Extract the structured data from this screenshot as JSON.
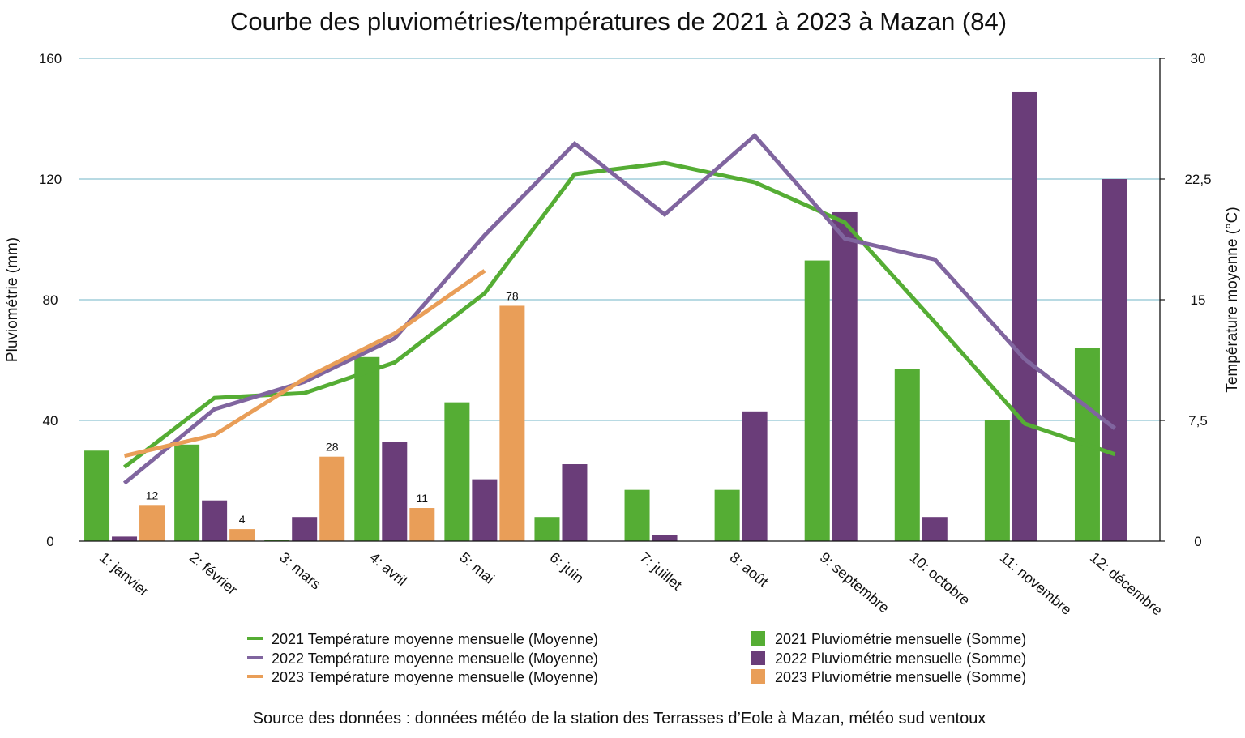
{
  "chart_data": {
    "type": "bar",
    "title": "Courbe des pluviométries/températures de 2021 à 2023 à Mazan (84)",
    "ylabel": "Pluviométrie (mm)",
    "y2label": "Température moyenne (°C)",
    "ylim": [
      0,
      160
    ],
    "y2lim": [
      0,
      30
    ],
    "yticks": [
      "0",
      "40",
      "80",
      "120",
      "160"
    ],
    "y2ticks": [
      "0",
      "7,5",
      "15",
      "22,5",
      "30"
    ],
    "grid": true,
    "legend_position": "bottom",
    "categories": [
      "1: janvier",
      "2: février",
      "3: mars",
      "4: avril",
      "5: mai",
      "6: juin",
      "7: juillet",
      "8: août",
      "9: septembre",
      "10: octobre",
      "11: novembre",
      "12: décembre"
    ],
    "bar_series": [
      {
        "name": "2021 Pluviométrie mensuelle (Somme)",
        "color": "#55ad34",
        "values": [
          30,
          32,
          0.5,
          61,
          46,
          8,
          17,
          17,
          93,
          57,
          40,
          64
        ]
      },
      {
        "name": "2022 Pluviométrie mensuelle (Somme)",
        "color": "#6a3d79",
        "values": [
          1.5,
          13.5,
          8,
          33,
          20.5,
          25.5,
          2,
          43,
          109,
          8,
          149,
          120
        ]
      },
      {
        "name": "2023 Pluviométrie mensuelle (Somme)",
        "color": "#e99e58",
        "values": [
          12,
          4,
          28,
          11,
          78,
          null,
          null,
          null,
          null,
          null,
          null,
          null
        ],
        "labels": [
          "12",
          "4",
          "28",
          "11",
          "78"
        ]
      }
    ],
    "line_series": [
      {
        "name": "2021 Température moyenne mensuelle (Moyenne)",
        "color": "#55ad34",
        "axis": "right",
        "values": [
          4.6,
          8.9,
          9.2,
          11.1,
          15.4,
          22.8,
          23.5,
          22.3,
          19.8,
          13.6,
          7.3,
          5.4
        ]
      },
      {
        "name": "2022 Température moyenne mensuelle (Moyenne)",
        "color": "#80659f",
        "axis": "right",
        "values": [
          3.6,
          8.2,
          9.9,
          12.6,
          19.0,
          24.7,
          20.3,
          25.2,
          18.8,
          17.5,
          11.3,
          7.0
        ]
      },
      {
        "name": "2023 Température moyenne mensuelle (Moyenne)",
        "color": "#e99e58",
        "axis": "right",
        "values": [
          5.3,
          6.6,
          10.1,
          12.9,
          16.8,
          null,
          null,
          null,
          null,
          null,
          null,
          null
        ]
      }
    ]
  },
  "source_text": "Source des données : données météo de la station des Terrasses d’Eole à Mazan, météo sud ventoux"
}
